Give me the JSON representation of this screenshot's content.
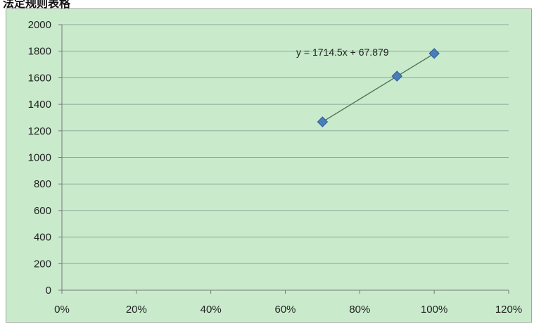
{
  "header_fragment": "法定规则表格",
  "chart_data": {
    "type": "scatter",
    "title": "",
    "xlabel": "",
    "ylabel": "",
    "x_ticks": [
      "0%",
      "20%",
      "40%",
      "60%",
      "80%",
      "100%",
      "120%"
    ],
    "y_ticks": [
      "0",
      "200",
      "400",
      "600",
      "800",
      "1000",
      "1200",
      "1400",
      "1600",
      "1800",
      "2000"
    ],
    "xlim": [
      0,
      1.2
    ],
    "ylim": [
      0,
      2000
    ],
    "grid": "horizontal",
    "points": [
      {
        "x": 0.7,
        "y": 1268
      },
      {
        "x": 0.9,
        "y": 1612
      },
      {
        "x": 1.0,
        "y": 1783
      }
    ],
    "trendline": {
      "slope": 1714.5,
      "intercept": 67.879,
      "x_range": [
        0.7,
        1.0
      ],
      "label": "y = 1714.5x + 67.879"
    },
    "colors": {
      "background": "#c9ebcc",
      "gridline": "#8fa89a",
      "marker": "#4a7ebb",
      "marker_edge": "#2f5d93",
      "trendline": "#4a6f4f"
    }
  }
}
